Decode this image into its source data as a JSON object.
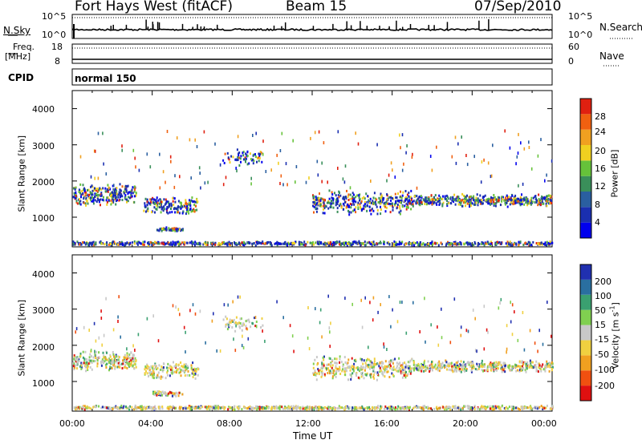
{
  "header": {
    "station": "Fort Hays West (fitACF)",
    "beam": "Beam 15",
    "date": "07/Sep/2010"
  },
  "nsky": {
    "label": "N.Sky",
    "ticks": [
      "10^5",
      "10^0"
    ],
    "right_label": "N.Search",
    "right_ticks": [
      "10^5",
      "10^0"
    ]
  },
  "freq": {
    "label_top": "Freq.",
    "label_unit": "[MHz]",
    "ticks": [
      "18",
      "8"
    ],
    "right_label": "Nave",
    "right_ticks": [
      "60",
      "0"
    ]
  },
  "cpid": {
    "label": "CPID",
    "mode": "normal 150"
  },
  "range_axis": {
    "label": "Slant Range [km]",
    "ticks": [
      "4000",
      "3000",
      "2000",
      "1000"
    ],
    "ylim": [
      180,
      4500
    ]
  },
  "time_axis": {
    "label": "Time UT",
    "ticks": [
      "00:00",
      "04:00",
      "08:00",
      "12:00",
      "16:00",
      "20:00",
      "00:00"
    ],
    "xlim_hours": [
      0,
      24
    ]
  },
  "power_scale": {
    "label": "Power [dB]",
    "ticks": [
      "28",
      "24",
      "20",
      "16",
      "12",
      "8",
      "4"
    ],
    "colors": [
      "#0000ee",
      "#1a2fb0",
      "#2a5fa0",
      "#3a8f5a",
      "#66c23a",
      "#f0d020",
      "#f0a020",
      "#f06010",
      "#e02010"
    ]
  },
  "velocity_scale": {
    "label": "Velocity",
    "unit": "[m s",
    "unit_exp": "-1",
    "unit_close": "]",
    "ticks": [
      "200",
      "100",
      "50",
      "15",
      "-15",
      "-50",
      "-100",
      "-200"
    ],
    "colors": [
      "#2030b0",
      "#2a6fa0",
      "#3aa070",
      "#80d050",
      "#c8c8c8",
      "#f0d040",
      "#f0a020",
      "#f05010",
      "#e01010"
    ]
  },
  "chart_data": [
    {
      "type": "heatmap",
      "name": "power",
      "x_unit": "hours UT",
      "y_unit": "km",
      "bands": [
        {
          "x": [
            0.0,
            3.2
          ],
          "y_center": 1600,
          "y_spread": 300,
          "density": 0.9
        },
        {
          "x": [
            3.5,
            6.3
          ],
          "y_center": 1300,
          "y_spread": 250,
          "density": 0.7
        },
        {
          "x": [
            4.2,
            5.5
          ],
          "y_center": 650,
          "y_spread": 60,
          "density": 0.5
        },
        {
          "x": [
            7.5,
            9.5
          ],
          "y_center": 2650,
          "y_spread": 250,
          "density": 0.35
        },
        {
          "x": [
            12.0,
            17.0
          ],
          "y_center": 1400,
          "y_spread": 350,
          "density": 0.8
        },
        {
          "x": [
            17.0,
            24.0
          ],
          "y_center": 1450,
          "y_spread": 180,
          "density": 0.75
        },
        {
          "x": [
            0.0,
            24.0
          ],
          "y_center": 260,
          "y_spread": 60,
          "density": 0.35
        }
      ]
    },
    {
      "type": "heatmap",
      "name": "velocity",
      "x_unit": "hours UT",
      "y_unit": "km",
      "bands": [
        {
          "x": [
            0.0,
            3.2
          ],
          "y_center": 1550,
          "y_spread": 300,
          "density": 0.85
        },
        {
          "x": [
            3.5,
            6.3
          ],
          "y_center": 1300,
          "y_spread": 250,
          "density": 0.6
        },
        {
          "x": [
            4.0,
            5.5
          ],
          "y_center": 650,
          "y_spread": 80,
          "density": 0.45
        },
        {
          "x": [
            7.5,
            9.5
          ],
          "y_center": 2600,
          "y_spread": 250,
          "density": 0.3
        },
        {
          "x": [
            12.0,
            17.0
          ],
          "y_center": 1350,
          "y_spread": 350,
          "density": 0.75
        },
        {
          "x": [
            17.0,
            24.0
          ],
          "y_center": 1400,
          "y_spread": 180,
          "density": 0.7
        },
        {
          "x": [
            0.0,
            24.0
          ],
          "y_center": 260,
          "y_spread": 60,
          "density": 0.35
        }
      ]
    }
  ]
}
